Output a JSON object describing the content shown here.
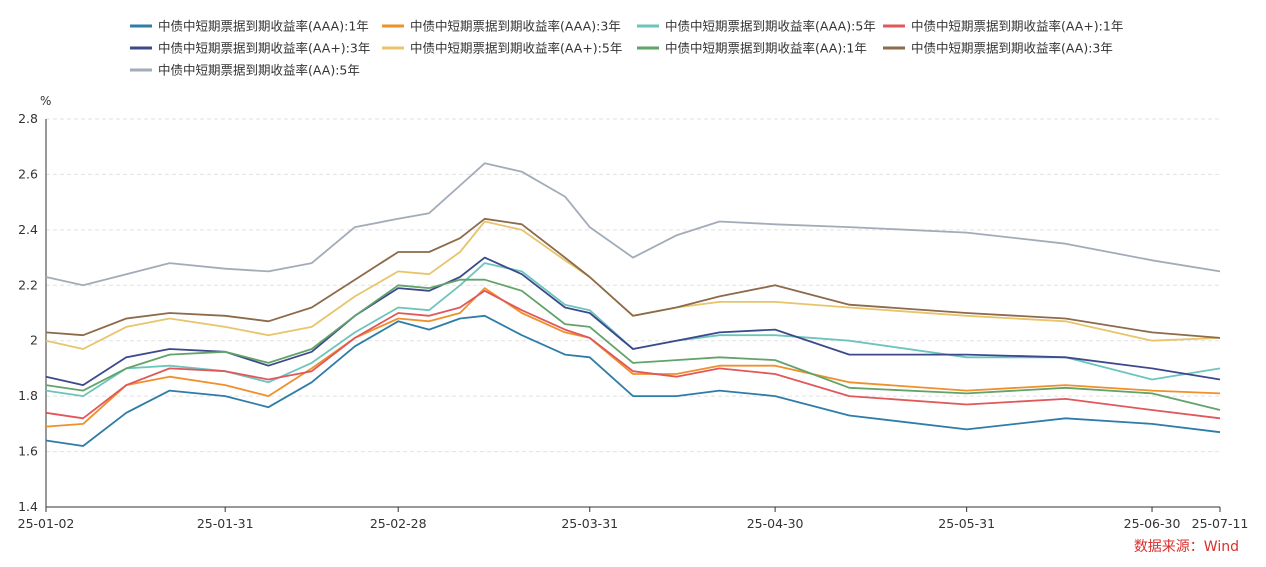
{
  "chart_data": {
    "type": "line",
    "ylabel": "%",
    "ylim": [
      1.4,
      2.8
    ],
    "yticks": [
      1.4,
      1.6,
      1.8,
      2,
      2.2,
      2.4,
      2.6,
      2.8
    ],
    "xlim": [
      "2025-01-02",
      "2025-07-11"
    ],
    "xticks": [
      {
        "date": "2025-01-02",
        "label": "25-01-02"
      },
      {
        "date": "2025-01-31",
        "label": "25-01-31"
      },
      {
        "date": "2025-02-28",
        "label": "25-02-28"
      },
      {
        "date": "2025-03-31",
        "label": "25-03-31"
      },
      {
        "date": "2025-04-30",
        "label": "25-04-30"
      },
      {
        "date": "2025-05-31",
        "label": "25-05-31"
      },
      {
        "date": "2025-06-30",
        "label": "25-06-30"
      },
      {
        "date": "2025-07-11",
        "label": "25-07-11"
      }
    ],
    "grid": "horizontal-dashed",
    "legend_position": "top",
    "x": [
      "2025-01-02",
      "2025-01-08",
      "2025-01-15",
      "2025-01-22",
      "2025-01-31",
      "2025-02-07",
      "2025-02-14",
      "2025-02-21",
      "2025-02-28",
      "2025-03-05",
      "2025-03-10",
      "2025-03-14",
      "2025-03-20",
      "2025-03-27",
      "2025-03-31",
      "2025-04-07",
      "2025-04-14",
      "2025-04-21",
      "2025-04-30",
      "2025-05-12",
      "2025-05-31",
      "2025-06-16",
      "2025-06-30",
      "2025-07-11"
    ],
    "series": [
      {
        "name": "中债中短期票据到期收益率(AAA):1年",
        "color": "#2e7ca8",
        "values": [
          1.64,
          1.62,
          1.74,
          1.82,
          1.8,
          1.76,
          1.85,
          1.98,
          2.07,
          2.04,
          2.08,
          2.09,
          2.02,
          1.95,
          1.94,
          1.8,
          1.8,
          1.82,
          1.8,
          1.73,
          1.68,
          1.72,
          1.7,
          1.67
        ]
      },
      {
        "name": "中债中短期票据到期收益率(AAA):3年",
        "color": "#f0902a",
        "values": [
          1.69,
          1.7,
          1.84,
          1.87,
          1.84,
          1.8,
          1.9,
          2.01,
          2.08,
          2.07,
          2.1,
          2.19,
          2.1,
          2.03,
          2.01,
          1.88,
          1.88,
          1.91,
          1.91,
          1.85,
          1.82,
          1.84,
          1.82,
          1.81
        ]
      },
      {
        "name": "中债中短期票据到期收益率(AAA):5年",
        "color": "#6cc5bd",
        "values": [
          1.82,
          1.8,
          1.9,
          1.91,
          1.89,
          1.85,
          1.92,
          2.03,
          2.12,
          2.11,
          2.2,
          2.28,
          2.25,
          2.13,
          2.11,
          1.97,
          2.0,
          2.02,
          2.02,
          2.0,
          1.94,
          1.94,
          1.86,
          1.9
        ]
      },
      {
        "name": "中债中短期票据到期收益率(AA+):1年",
        "color": "#e0585a",
        "values": [
          1.74,
          1.72,
          1.84,
          1.9,
          1.89,
          1.86,
          1.89,
          2.01,
          2.1,
          2.09,
          2.12,
          2.18,
          2.11,
          2.04,
          2.01,
          1.89,
          1.87,
          1.9,
          1.88,
          1.8,
          1.77,
          1.79,
          1.75,
          1.72
        ]
      },
      {
        "name": "中债中短期票据到期收益率(AA+):3年",
        "color": "#3c4a8c",
        "values": [
          1.87,
          1.84,
          1.94,
          1.97,
          1.96,
          1.91,
          1.96,
          2.09,
          2.19,
          2.18,
          2.23,
          2.3,
          2.24,
          2.12,
          2.1,
          1.97,
          2.0,
          2.03,
          2.04,
          1.95,
          1.95,
          1.94,
          1.9,
          1.86
        ]
      },
      {
        "name": "中债中短期票据到期收益率(AA+):5年",
        "color": "#e8c46a",
        "values": [
          2.0,
          1.97,
          2.05,
          2.08,
          2.05,
          2.02,
          2.05,
          2.16,
          2.25,
          2.24,
          2.32,
          2.43,
          2.4,
          2.29,
          2.23,
          2.09,
          2.12,
          2.14,
          2.14,
          2.12,
          2.09,
          2.07,
          2.0,
          2.01
        ]
      },
      {
        "name": "中债中短期票据到期收益率(AA):1年",
        "color": "#62a36a",
        "values": [
          1.84,
          1.82,
          1.9,
          1.95,
          1.96,
          1.92,
          1.97,
          2.09,
          2.2,
          2.19,
          2.22,
          2.22,
          2.18,
          2.06,
          2.05,
          1.92,
          1.93,
          1.94,
          1.93,
          1.83,
          1.81,
          1.83,
          1.81,
          1.75
        ]
      },
      {
        "name": "中债中短期票据到期收益率(AA):3年",
        "color": "#8c6a4a",
        "values": [
          2.03,
          2.02,
          2.08,
          2.1,
          2.09,
          2.07,
          2.12,
          2.22,
          2.32,
          2.32,
          2.37,
          2.44,
          2.42,
          2.3,
          2.23,
          2.09,
          2.12,
          2.16,
          2.2,
          2.13,
          2.1,
          2.08,
          2.03,
          2.01
        ]
      },
      {
        "name": "中债中短期票据到期收益率(AA):5年",
        "color": "#a2acb8",
        "values": [
          2.23,
          2.2,
          2.24,
          2.28,
          2.26,
          2.25,
          2.28,
          2.41,
          2.44,
          2.46,
          2.56,
          2.64,
          2.61,
          2.52,
          2.41,
          2.3,
          2.38,
          2.43,
          2.42,
          2.41,
          2.39,
          2.35,
          2.29,
          2.25
        ]
      }
    ]
  },
  "source_note": "数据来源：Wind"
}
